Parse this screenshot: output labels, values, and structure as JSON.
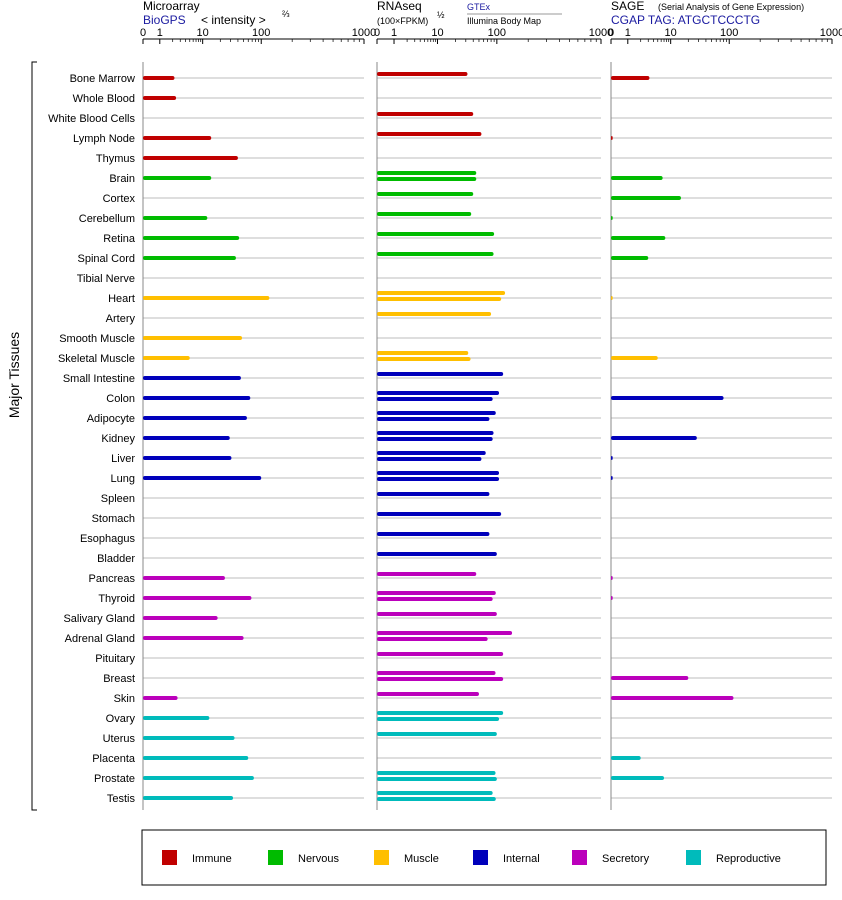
{
  "chart_data": {
    "type": "bar",
    "scale": "log",
    "xlim": [
      0,
      1000
    ],
    "ticks": [
      "0",
      "1",
      "10",
      "100",
      "1000"
    ],
    "ylabel": "Major Tissues",
    "grid": true,
    "legend_placement": "bottom",
    "categories": [
      "Bone Marrow",
      "Whole Blood",
      "White Blood Cells",
      "Lymph Node",
      "Thymus",
      "Brain",
      "Cortex",
      "Cerebellum",
      "Retina",
      "Spinal Cord",
      "Tibial Nerve",
      "Heart",
      "Artery",
      "Smooth Muscle",
      "Skeletal Muscle",
      "Small Intestine",
      "Colon",
      "Adipocyte",
      "Kidney",
      "Liver",
      "Lung",
      "Spleen",
      "Stomach",
      "Esophagus",
      "Bladder",
      "Pancreas",
      "Thyroid",
      "Salivary Gland",
      "Adrenal Gland",
      "Pituitary",
      "Breast",
      "Skin",
      "Ovary",
      "Uterus",
      "Placenta",
      "Prostate",
      "Testis"
    ],
    "groups": [
      "Immune",
      "Immune",
      "Immune",
      "Immune",
      "Immune",
      "Nervous",
      "Nervous",
      "Nervous",
      "Nervous",
      "Nervous",
      "Nervous",
      "Muscle",
      "Muscle",
      "Muscle",
      "Muscle",
      "Internal",
      "Internal",
      "Internal",
      "Internal",
      "Internal",
      "Internal",
      "Internal",
      "Internal",
      "Internal",
      "Internal",
      "Secretory",
      "Secretory",
      "Secretory",
      "Secretory",
      "Secretory",
      "Secretory",
      "Secretory",
      "Reproductive",
      "Reproductive",
      "Reproductive",
      "Reproductive",
      "Reproductive"
    ],
    "group_colors": {
      "Immune": "#c00000",
      "Nervous": "#00bb00",
      "Muscle": "#ffbf00",
      "Internal": "#0000bb",
      "Secretory": "#bb00bb",
      "Reproductive": "#00bbbb"
    },
    "panels": [
      {
        "title": "Microarray",
        "subtitle": "BioGPS",
        "note": "< intensity >",
        "note_sup": "⅔",
        "values": [
          [
            2.2
          ],
          [
            2.4
          ],
          [],
          [
            14
          ],
          [
            40
          ],
          [
            14
          ],
          [],
          [
            12
          ],
          [
            42
          ],
          [
            37
          ],
          [],
          [
            120
          ],
          [],
          [
            47
          ],
          [
            5
          ],
          [
            45
          ],
          [
            65
          ],
          [
            57
          ],
          [
            29
          ],
          [
            31
          ],
          [
            100
          ],
          [],
          [],
          [],
          [],
          [
            24
          ],
          [
            68
          ],
          [
            18
          ],
          [
            50
          ],
          [],
          [],
          [
            2.6
          ],
          [
            13
          ],
          [
            35
          ],
          [
            60
          ],
          [
            75
          ],
          [
            33
          ]
        ]
      },
      {
        "title": "RNAseq",
        "subtitle": "(100×FPKM)",
        "subtitle_sup": "½",
        "source1": "GTEx",
        "source2": "Illumina Body Map",
        "values": [
          [
            32
          ],
          [],
          [
            40
          ],
          [
            55
          ],
          [],
          [
            45,
            45
          ],
          [
            40
          ],
          [
            37
          ],
          [
            90
          ],
          [
            88
          ],
          [],
          [
            120,
            110
          ],
          [
            80
          ],
          [],
          [
            33,
            36
          ],
          [
            115
          ],
          [
            105,
            85
          ],
          [
            96,
            75
          ],
          [
            88,
            85
          ],
          [
            65,
            55
          ],
          [
            105,
            105
          ],
          [
            75
          ],
          [
            110
          ],
          [
            75
          ],
          [
            100
          ],
          [
            45
          ],
          [
            96,
            85
          ],
          [
            100
          ],
          [
            140,
            70
          ],
          [
            115
          ],
          [
            95,
            115
          ],
          [
            50
          ],
          [
            115,
            105
          ],
          [
            100
          ],
          [],
          [
            95,
            100
          ],
          [
            85,
            96
          ]
        ]
      },
      {
        "title": "SAGE",
        "subtitle": "CGAP TAG: ATGCTCCCTG",
        "note": "(Serial Analysis of Gene Expression)",
        "values": [
          [
            3.2
          ],
          [],
          [],
          [
            0.1
          ],
          [],
          [
            6.5
          ],
          [
            15
          ],
          [
            0.1
          ],
          [
            7.5
          ],
          [
            3
          ],
          [],
          [
            0.1
          ],
          [],
          [],
          [
            5
          ],
          [],
          [
            80
          ],
          [],
          [
            28
          ],
          [
            0.1
          ],
          [
            0.1
          ],
          [],
          [],
          [],
          [],
          [
            0.1
          ],
          [
            0.1
          ],
          [],
          [],
          [],
          [
            20
          ],
          [
            110
          ],
          [],
          [],
          [
            2
          ],
          [
            7
          ],
          []
        ]
      }
    ]
  },
  "legend": [
    "Immune",
    "Nervous",
    "Muscle",
    "Internal",
    "Secretory",
    "Reproductive"
  ]
}
